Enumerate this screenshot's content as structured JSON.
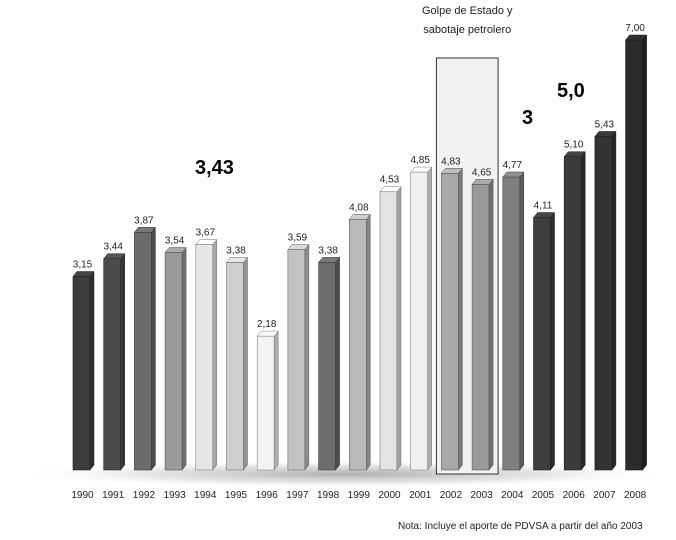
{
  "chart_data": {
    "type": "bar",
    "categories": [
      "1990",
      "1991",
      "1992",
      "1993",
      "1994",
      "1995",
      "1996",
      "1997",
      "1998",
      "1999",
      "2000",
      "2001",
      "2002",
      "2003",
      "2004",
      "2005",
      "2006",
      "2007",
      "2008"
    ],
    "values": [
      3.15,
      3.44,
      3.87,
      3.54,
      3.67,
      3.38,
      2.18,
      3.59,
      3.38,
      4.08,
      4.53,
      4.85,
      4.83,
      4.65,
      4.77,
      4.11,
      5.1,
      5.43,
      7.0
    ],
    "value_labels": [
      "3,15",
      "3,44",
      "3,87",
      "3,54",
      "3,67",
      "3,38",
      "2,18",
      "3,59",
      "3,38",
      "4,08",
      "4,53",
      "4,85",
      "4,83",
      "4,65",
      "4,77",
      "4,11",
      "5,10",
      "5,43",
      "7,00"
    ],
    "bar_colors": [
      "#3c3c3c",
      "#4b4b4b",
      "#6b6b6b",
      "#9a9a9a",
      "#e6e6e6",
      "#cfcfcf",
      "#f3f3f3",
      "#c3c3c3",
      "#6d6d6d",
      "#b9b9b9",
      "#e3e3e3",
      "#f0f0f0",
      "#a8a8a8",
      "#9a9a9a",
      "#7f7f7f",
      "#3e3e3e",
      "#3b3b3b",
      "#333333",
      "#2b2b2b"
    ],
    "ylim": [
      0,
      7.2
    ],
    "grid": false,
    "annotation": {
      "line1": "Golpe de Estado y",
      "line2": "sabotaje petrolero",
      "categories": [
        "2002",
        "2003"
      ]
    },
    "big_notes": [
      "3,43",
      "3",
      "5,0"
    ],
    "footnote": "Nota: Incluye el aporte de PDVSA a partir del año 2003"
  }
}
